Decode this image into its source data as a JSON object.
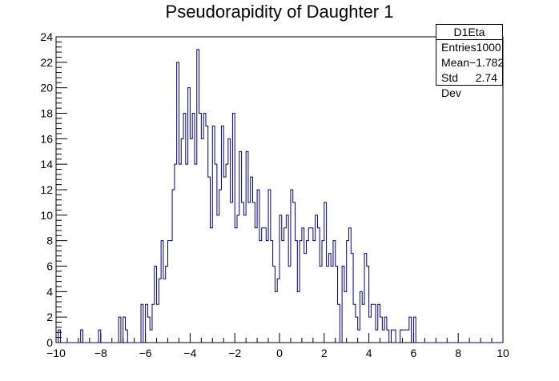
{
  "chart_data": {
    "type": "histogram",
    "title": "Pseudorapidity of Daughter 1",
    "xlim": [
      -10,
      10
    ],
    "ylim": [
      0,
      24
    ],
    "bin_width": 0.1,
    "xticks": [
      "−10",
      "−8",
      "−6",
      "−4",
      "−2",
      "0",
      "2",
      "4",
      "6",
      "8",
      "10"
    ],
    "yticks": [
      "0",
      "2",
      "4",
      "6",
      "8",
      "10",
      "12",
      "14",
      "16",
      "18",
      "20",
      "22",
      "24"
    ],
    "line_color": "#000080",
    "bins_x_start": [
      -10.0,
      -9.9,
      -9.8,
      -9.7,
      -9.6,
      -9.5,
      -9.4,
      -9.3,
      -9.2,
      -9.1,
      -9.0,
      -8.9,
      -8.8,
      -8.7,
      -8.6,
      -8.5,
      -8.4,
      -8.3,
      -8.2,
      -8.1,
      -8.0,
      -7.9,
      -7.8,
      -7.7,
      -7.6,
      -7.5,
      -7.4,
      -7.3,
      -7.2,
      -7.1,
      -7.0,
      -6.9,
      -6.8,
      -6.7,
      -6.6,
      -6.5,
      -6.4,
      -6.3,
      -6.2,
      -6.1,
      -6.0,
      -5.9,
      -5.8,
      -5.7,
      -5.6,
      -5.5,
      -5.4,
      -5.3,
      -5.2,
      -5.1,
      -5.0,
      -4.9,
      -4.8,
      -4.7,
      -4.6,
      -4.5,
      -4.4,
      -4.3,
      -4.2,
      -4.1,
      -4.0,
      -3.9,
      -3.8,
      -3.7,
      -3.6,
      -3.5,
      -3.4,
      -3.3,
      -3.2,
      -3.1,
      -3.0,
      -2.9,
      -2.8,
      -2.7,
      -2.6,
      -2.5,
      -2.4,
      -2.3,
      -2.2,
      -2.1,
      -2.0,
      -1.9,
      -1.8,
      -1.7,
      -1.6,
      -1.5,
      -1.4,
      -1.3,
      -1.2,
      -1.1,
      -1.0,
      -0.9,
      -0.8,
      -0.7,
      -0.6,
      -0.5,
      -0.4,
      -0.3,
      -0.2,
      -0.1,
      0.0,
      0.1,
      0.2,
      0.3,
      0.4,
      0.5,
      0.6,
      0.7,
      0.8,
      0.9,
      1.0,
      1.1,
      1.2,
      1.3,
      1.4,
      1.5,
      1.6,
      1.7,
      1.8,
      1.9,
      2.0,
      2.1,
      2.2,
      2.3,
      2.4,
      2.5,
      2.6,
      2.7,
      2.8,
      2.9,
      3.0,
      3.1,
      3.2,
      3.3,
      3.4,
      3.5,
      3.6,
      3.7,
      3.8,
      3.9,
      4.0,
      4.1,
      4.2,
      4.3,
      4.4,
      4.5,
      4.6,
      4.7,
      4.8,
      4.9,
      5.0,
      5.1,
      5.2,
      5.3,
      5.4,
      5.5,
      5.6,
      5.7,
      5.8,
      5.9,
      6.0,
      6.1,
      6.2,
      6.3,
      6.4,
      6.5,
      6.6,
      6.7,
      6.8,
      6.9,
      7.0,
      7.1,
      7.2,
      7.3,
      7.4,
      7.5,
      7.6,
      7.7,
      7.8,
      7.9,
      8.0,
      8.1,
      8.2,
      8.3,
      8.4,
      8.5,
      8.6,
      8.7,
      8.8,
      8.9,
      9.0,
      9.1,
      9.2,
      9.3,
      9.4,
      9.5,
      9.6,
      9.7,
      9.8,
      9.9
    ],
    "values": [
      0,
      1,
      0,
      0,
      0,
      0,
      0,
      0,
      0,
      0,
      0,
      1,
      0,
      0,
      0,
      0,
      0,
      0,
      0,
      1,
      0,
      0,
      0,
      0,
      0,
      0,
      0,
      0,
      2,
      0,
      2,
      1,
      0,
      0,
      0,
      0,
      0,
      0,
      3,
      0,
      3,
      2,
      1,
      3,
      6,
      3,
      5,
      8,
      5,
      6,
      8,
      8,
      12,
      14,
      22,
      14,
      16,
      18,
      14,
      20,
      16,
      18,
      14,
      23,
      18,
      16,
      18,
      17,
      13,
      9,
      17,
      14,
      10,
      12,
      17,
      13,
      14,
      16,
      11,
      18,
      9,
      10,
      15,
      11,
      10,
      15,
      11,
      13,
      11,
      9,
      12,
      8,
      9,
      9,
      8,
      12,
      8,
      6,
      4,
      5,
      10,
      8,
      9,
      10,
      6,
      12,
      11,
      8,
      4,
      8,
      9,
      7,
      8,
      9,
      9,
      8,
      10,
      9,
      6,
      8,
      11,
      6,
      7,
      6,
      8,
      6,
      3,
      0,
      6,
      4,
      8,
      9,
      7,
      3,
      2,
      1,
      4,
      3,
      7,
      6,
      2,
      3,
      3,
      1,
      3,
      2,
      1,
      2,
      1,
      0,
      1,
      1,
      0,
      0,
      1,
      1,
      1,
      1,
      2,
      0,
      2,
      0,
      0,
      0,
      0,
      0,
      0,
      0,
      0,
      0,
      0,
      0,
      0,
      0,
      0,
      0,
      0,
      0,
      0,
      0,
      0,
      0,
      0,
      0,
      0,
      0,
      0,
      0,
      0,
      0,
      0,
      0,
      0,
      0,
      0,
      0,
      0,
      0,
      0,
      0
    ]
  },
  "stats_box": {
    "name": "D1Eta",
    "entries_label": "Entries",
    "entries_value": "1000",
    "mean_label": "Mean",
    "mean_value": "−1.782",
    "stddev_label": "Std Dev",
    "stddev_value": "2.74"
  }
}
